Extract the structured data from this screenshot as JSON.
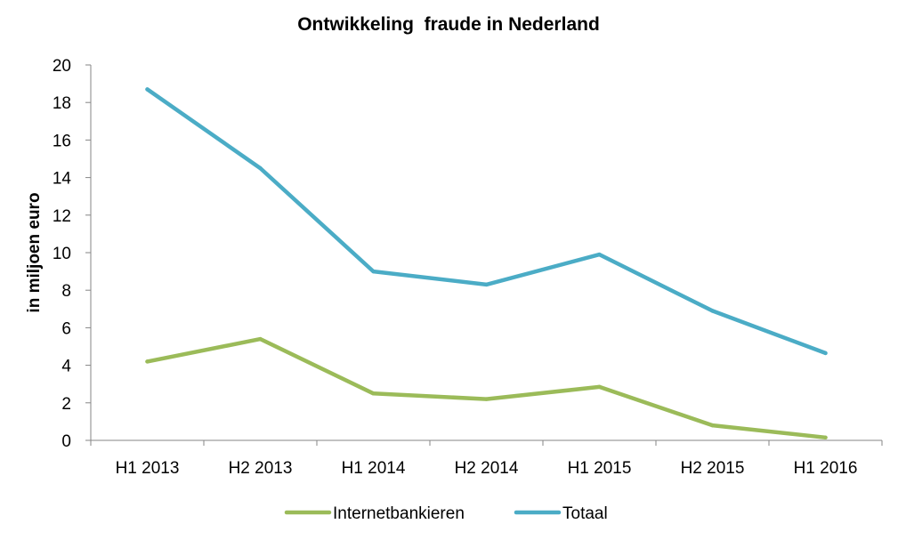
{
  "chart_data": {
    "type": "line",
    "title": "Ontwikkeling  fraude in Nederland",
    "ylabel": "in miljoen euro",
    "xlabel": "",
    "categories": [
      "H1 2013",
      "H2 2013",
      "H1 2014",
      "H2 2014",
      "H1 2015",
      "H2 2015",
      "H1 2016"
    ],
    "ylim": [
      0,
      20
    ],
    "yticks": [
      "0",
      "2",
      "4",
      "6",
      "8",
      "10",
      "12",
      "14",
      "16",
      "18",
      "20"
    ],
    "grid": false,
    "legend_position": "bottom",
    "series": [
      {
        "name": "Internetbankieren",
        "color": "#9BBB59",
        "values": [
          4.2,
          5.4,
          2.5,
          2.2,
          2.85,
          0.8,
          0.15
        ]
      },
      {
        "name": "Totaal",
        "color": "#4BACC6",
        "values": [
          18.7,
          14.5,
          9.0,
          8.3,
          9.9,
          6.9,
          4.65
        ]
      }
    ]
  }
}
